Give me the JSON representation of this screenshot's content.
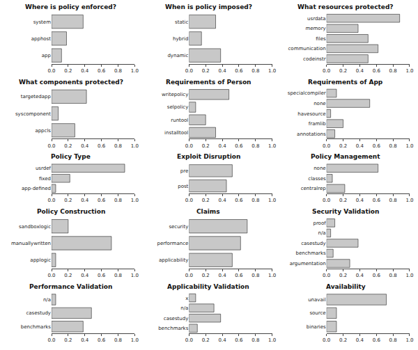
{
  "chart_data": [
    {
      "type": "bar",
      "title": "Where is policy enforced?",
      "categories": [
        "system",
        "apphost",
        "app"
      ],
      "values": [
        0.38,
        0.18,
        0.12
      ],
      "orientation": "horizontal",
      "color": "#c8c8c8",
      "xlim": [
        0,
        1.0
      ],
      "xticks": [
        {
          "value": 0.0,
          "label": "0.0"
        },
        0.2,
        0.4,
        0.6,
        0.8,
        {
          "value": 1.0,
          "label": "1.0"
        }
      ],
      "grid": false
    },
    {
      "type": "bar",
      "title": "When is policy imposed?",
      "categories": [
        "static",
        "hybrid",
        "dynamic"
      ],
      "values": [
        0.32,
        0.15,
        0.38
      ],
      "orientation": "horizontal",
      "color": "#c8c8c8",
      "xlim": [
        0,
        1.0
      ],
      "xticks": [
        {
          "value": 0.0,
          "label": "0.0"
        },
        0.2,
        0.4,
        0.6,
        0.8,
        {
          "value": 1.0,
          "label": "1.0"
        }
      ],
      "grid": false
    },
    {
      "type": "bar",
      "title": "What resources protected?",
      "categories": [
        "usrdata",
        "memory",
        "files",
        "communication",
        "codeinstr"
      ],
      "values": [
        0.88,
        0.38,
        0.5,
        0.62,
        0.5
      ],
      "orientation": "horizontal",
      "color": "#c8c8c8",
      "xlim": [
        0,
        1.0
      ],
      "xticks": [
        {
          "value": 0.0,
          "label": "0.0"
        },
        0.2,
        0.4,
        0.6,
        0.8,
        {
          "value": 1.0,
          "label": "1.0"
        }
      ],
      "grid": false
    },
    {
      "type": "bar",
      "title": "What components protected?",
      "categories": [
        "targetedapp",
        "syscomponent",
        "appcls"
      ],
      "values": [
        0.42,
        0.08,
        0.28
      ],
      "orientation": "horizontal",
      "color": "#c8c8c8",
      "xlim": [
        0,
        1.0
      ],
      "xticks": [
        {
          "value": 0.0,
          "label": "0.0"
        },
        0.2,
        0.4,
        0.6,
        0.8,
        {
          "value": 1.0,
          "label": "1.0"
        }
      ],
      "grid": false
    },
    {
      "type": "bar",
      "title": "Requirements of Person",
      "categories": [
        "writepolicy",
        "selpolicy",
        "runtool",
        "installtool"
      ],
      "values": [
        0.48,
        0.08,
        0.2,
        0.32
      ],
      "orientation": "horizontal",
      "color": "#c8c8c8",
      "xlim": [
        0,
        1.0
      ],
      "xticks": [
        {
          "value": 0.0,
          "label": "0.0"
        },
        0.2,
        0.4,
        0.6,
        0.8,
        {
          "value": 1.0,
          "label": "1.0"
        }
      ],
      "grid": false
    },
    {
      "type": "bar",
      "title": "Requirements of App",
      "categories": [
        "specialcompiler",
        "none",
        "havesource",
        "framlib",
        "annotations"
      ],
      "values": [
        0.12,
        0.52,
        0.05,
        0.2,
        0.1
      ],
      "orientation": "horizontal",
      "color": "#c8c8c8",
      "xlim": [
        0,
        1.0
      ],
      "xticks": [
        {
          "value": 0.0,
          "label": "0.0"
        },
        0.2,
        0.4,
        0.6,
        0.8,
        {
          "value": 1.0,
          "label": "1.0"
        }
      ],
      "grid": false
    },
    {
      "type": "bar",
      "title": "Policy Type",
      "categories": [
        "usrdef",
        "fixed",
        "app-defined"
      ],
      "values": [
        0.88,
        0.22,
        0.05
      ],
      "orientation": "horizontal",
      "color": "#c8c8c8",
      "xlim": [
        0,
        1.0
      ],
      "xticks": [
        {
          "value": 0.0,
          "label": "0.0"
        },
        0.2,
        0.4,
        0.6,
        0.8,
        {
          "value": 1.0,
          "label": "1.0"
        }
      ],
      "grid": false
    },
    {
      "type": "bar",
      "title": "Exploit Disruption",
      "categories": [
        "pre",
        "post"
      ],
      "values": [
        0.52,
        0.45
      ],
      "orientation": "horizontal",
      "color": "#c8c8c8",
      "xlim": [
        0,
        1.0
      ],
      "xticks": [
        {
          "value": 0.0,
          "label": "0.0"
        },
        0.2,
        0.4,
        0.6,
        0.8,
        {
          "value": 1.0,
          "label": "1.0"
        }
      ],
      "grid": false
    },
    {
      "type": "bar",
      "title": "Policy Management",
      "categories": [
        "none",
        "classes",
        "centralrep"
      ],
      "values": [
        0.62,
        0.07,
        0.22
      ],
      "orientation": "horizontal",
      "color": "#c8c8c8",
      "xlim": [
        0,
        1.0
      ],
      "xticks": [
        {
          "value": 0.0,
          "label": "0.0"
        },
        0.2,
        0.4,
        0.6,
        0.8,
        {
          "value": 1.0,
          "label": "1.0"
        }
      ],
      "grid": false
    },
    {
      "type": "bar",
      "title": "Policy Construction",
      "categories": [
        "sandboxlogic",
        "manuallywritten",
        "applogic"
      ],
      "values": [
        0.2,
        0.72,
        0.05
      ],
      "orientation": "horizontal",
      "color": "#c8c8c8",
      "xlim": [
        0,
        1.0
      ],
      "xticks": [
        {
          "value": 0.0,
          "label": "0.0"
        },
        0.2,
        0.4,
        0.6,
        0.8,
        {
          "value": 1.0,
          "label": "1.0"
        }
      ],
      "grid": false
    },
    {
      "type": "bar",
      "title": "Claims",
      "categories": [
        "security",
        "performance",
        "applicability"
      ],
      "values": [
        0.7,
        0.62,
        0.52
      ],
      "orientation": "horizontal",
      "color": "#c8c8c8",
      "xlim": [
        0,
        1.0
      ],
      "xticks": [
        {
          "value": 0.0,
          "label": "0.0"
        },
        0.2,
        0.4,
        0.6,
        0.8,
        {
          "value": 1.0,
          "label": "1.0"
        }
      ],
      "grid": false
    },
    {
      "type": "bar",
      "title": "Security Validation",
      "categories": [
        "proof",
        "n/a",
        "casestudy",
        "benchmarks",
        "argumentation"
      ],
      "values": [
        0.1,
        0.05,
        0.38,
        0.08,
        0.28
      ],
      "orientation": "horizontal",
      "color": "#c8c8c8",
      "xlim": [
        0,
        1.0
      ],
      "xticks": [
        {
          "value": 0.0,
          "label": "0.0"
        },
        0.2,
        0.4,
        0.6,
        0.8,
        {
          "value": 1.0,
          "label": "1.0"
        }
      ],
      "grid": false
    },
    {
      "type": "bar",
      "title": "Performance Validation",
      "categories": [
        "n/a",
        "casestudy",
        "benchmarks"
      ],
      "values": [
        0.05,
        0.48,
        0.38
      ],
      "orientation": "horizontal",
      "color": "#c8c8c8",
      "xlim": [
        0,
        1.0
      ],
      "xticks": [
        {
          "value": 0.0,
          "label": "0.0"
        },
        0.2,
        0.4,
        0.6,
        0.8,
        {
          "value": 1.0,
          "label": "1.0"
        }
      ],
      "grid": false
    },
    {
      "type": "bar",
      "title": "Applicability Validation",
      "categories": [
        "x",
        "n/a",
        "casestudy",
        "benchmarks"
      ],
      "values": [
        0.08,
        0.3,
        0.38,
        0.1
      ],
      "orientation": "horizontal",
      "color": "#c8c8c8",
      "xlim": [
        0,
        1.0
      ],
      "xticks": [
        {
          "value": 0.0,
          "label": "0.0"
        },
        0.2,
        0.4,
        0.6,
        0.8,
        {
          "value": 1.0,
          "label": "1.0"
        }
      ],
      "grid": false
    },
    {
      "type": "bar",
      "title": "Availability",
      "categories": [
        "unavail",
        "source",
        "binaries"
      ],
      "values": [
        0.72,
        0.12,
        0.12
      ],
      "orientation": "horizontal",
      "color": "#c8c8c8",
      "xlim": [
        0,
        1.0
      ],
      "xticks": [
        {
          "value": 0.0,
          "label": "0.0"
        },
        0.2,
        0.4,
        0.6,
        0.8,
        {
          "value": 1.0,
          "label": "1.0"
        }
      ],
      "grid": false
    }
  ]
}
